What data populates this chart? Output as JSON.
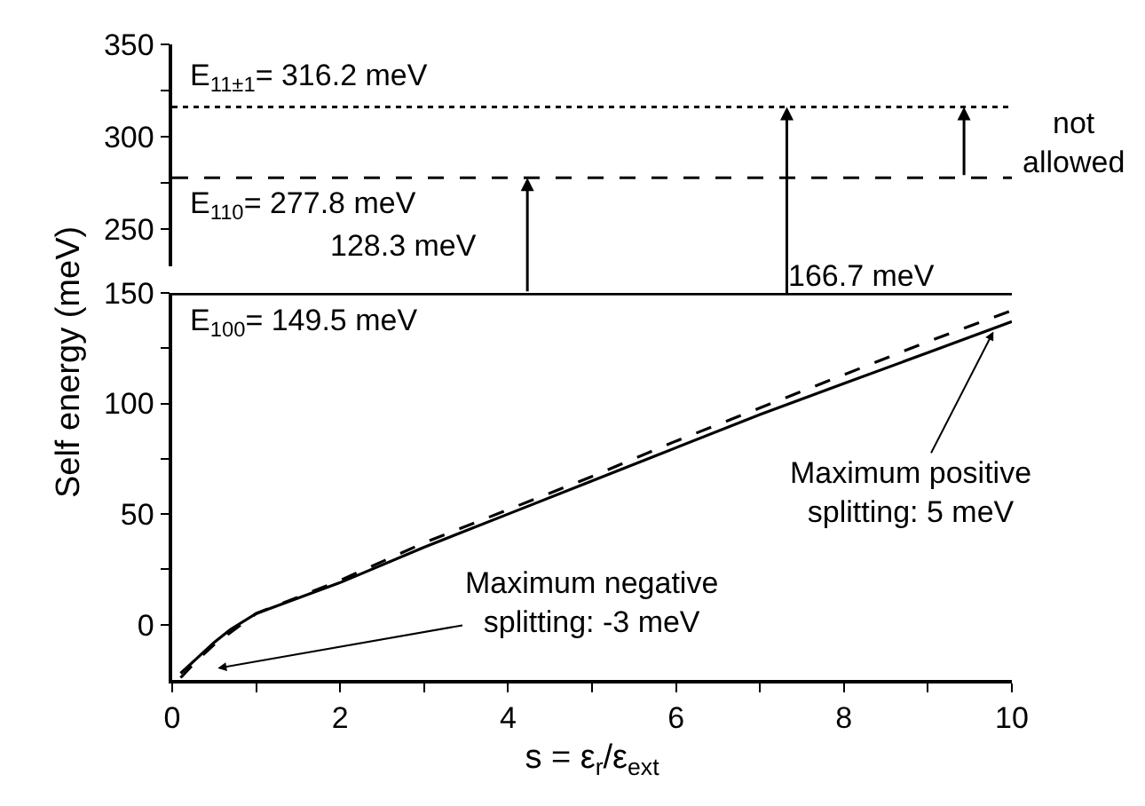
{
  "chart_data": [
    {
      "type": "line",
      "xlim": [
        0,
        10
      ],
      "ylim": [
        230,
        350
      ],
      "yticks": [
        250,
        {
          "value": 275,
          "label": null
        },
        300,
        {
          "value": 325,
          "label": null
        },
        350
      ],
      "tick_labels": "y",
      "ref_lines": [
        {
          "axis": "y",
          "value": 316.2,
          "label": "E$_{11±1}$= 316.2 meV",
          "color": "#000000",
          "line_style": "dotted"
        },
        {
          "axis": "y",
          "value": 277.8,
          "label": "E$_{110}$= 277.8 meV",
          "color": "#000000",
          "line_style": "dashed"
        }
      ],
      "annotations": [
        {
          "text": "128.3 meV",
          "x": 4.23,
          "y": 277.8
        },
        {
          "text": "166.7 meV",
          "x": 7.32,
          "y": 316.2
        },
        {
          "text": "not\nallowed",
          "x": 9.43,
          "y": 316.2
        }
      ]
    },
    {
      "type": "line",
      "xlabel": "s = ε$_{r}$/ε$_{ext}$",
      "ylabel": "Self energy (meV)",
      "xlim": [
        0,
        10
      ],
      "ylim": [
        -25,
        150
      ],
      "xticks": [
        0,
        {
          "value": 1,
          "label": null
        },
        2,
        {
          "value": 3,
          "label": null
        },
        4,
        {
          "value": 5,
          "label": null
        },
        6,
        {
          "value": 7,
          "label": null
        },
        8,
        {
          "value": 9,
          "label": null
        },
        10
      ],
      "yticks": [
        0,
        {
          "value": 25,
          "label": null
        },
        50,
        {
          "value": 75,
          "label": null
        },
        100,
        {
          "value": 125,
          "label": null
        },
        150
      ],
      "marker": "none",
      "series": [
        {
          "color": "#000000",
          "line_style": "solid",
          "x": [
            0.1,
            0.3,
            0.5,
            0.7,
            1,
            1.5,
            2,
            3,
            4,
            5,
            6,
            7,
            8,
            9,
            10
          ],
          "values": [
            -22,
            -15,
            -8,
            -2,
            5,
            12,
            19,
            35,
            50,
            65,
            80,
            95,
            109,
            123,
            137
          ]
        },
        {
          "color": "#000000",
          "line_style": "dashed",
          "x": [
            0.1,
            0.3,
            0.5,
            1,
            2,
            3,
            4,
            5,
            6,
            7,
            8,
            9,
            10
          ],
          "values": [
            -24,
            -16,
            -9,
            5,
            20,
            37,
            52,
            67,
            83,
            98,
            113,
            128,
            142
          ]
        }
      ],
      "ref_lines": [
        {
          "axis": "y",
          "value": 149.5,
          "label": "E$_{100}$= 149.5 meV",
          "color": "#000000",
          "line_style": "solid"
        }
      ],
      "annotations": [
        "Maximum negative\nsplitting: -3 meV",
        {
          "text": "Maximum positive\nsplitting: 5 meV",
          "x": 9.8,
          "y": 134
        }
      ]
    }
  ]
}
